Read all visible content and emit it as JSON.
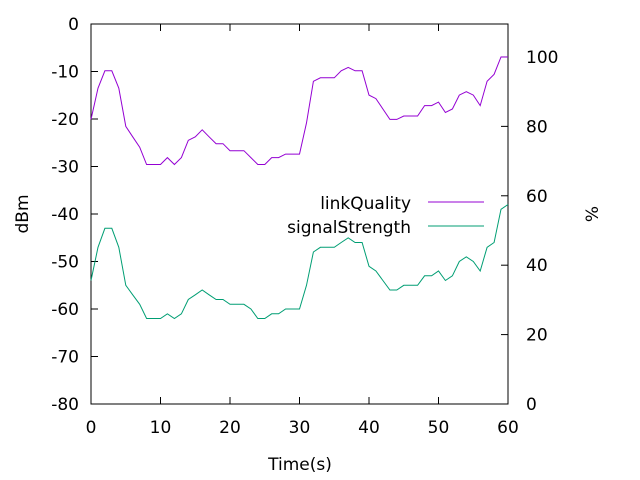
{
  "chart_data": {
    "type": "line",
    "xlabel": "Time(s)",
    "ylabel": "dBm",
    "y2label": "%",
    "xlim": [
      0,
      60
    ],
    "ylim": [
      -80,
      0
    ],
    "y2lim": [
      0,
      109.5
    ],
    "x_ticks": [
      0,
      10,
      20,
      30,
      40,
      50,
      60
    ],
    "y_ticks": [
      0,
      -10,
      -20,
      -30,
      -40,
      -50,
      -60,
      -70,
      -80
    ],
    "y2_ticks": [
      0,
      20,
      40,
      60,
      80,
      100
    ],
    "grid": false,
    "legend_position": "right-center",
    "series": [
      {
        "name": "linkQuality",
        "axis": "y2",
        "color": "#9400d3",
        "x": [
          0,
          1,
          2,
          3,
          4,
          5,
          6,
          7,
          8,
          9,
          10,
          11,
          12,
          13,
          14,
          15,
          16,
          17,
          18,
          19,
          20,
          21,
          22,
          23,
          24,
          25,
          26,
          27,
          28,
          29,
          30,
          31,
          32,
          33,
          34,
          35,
          36,
          37,
          38,
          39,
          40,
          41,
          42,
          43,
          44,
          45,
          46,
          47,
          48,
          49,
          50,
          51,
          52,
          53,
          54,
          55,
          56,
          57,
          58,
          59,
          60
        ],
        "y": [
          82,
          91,
          96,
          96,
          91,
          80,
          77,
          74,
          69,
          69,
          69,
          71,
          69,
          71,
          76,
          77,
          79,
          77,
          75,
          75,
          73,
          73,
          73,
          71,
          69,
          69,
          71,
          71,
          72,
          72,
          72,
          81,
          93,
          94,
          94,
          94,
          96,
          97,
          96,
          96,
          89,
          88,
          85,
          82,
          82,
          83,
          83,
          83,
          86,
          86,
          87,
          84,
          85,
          89,
          90,
          89,
          86,
          93,
          95,
          100,
          100
        ]
      },
      {
        "name": "signalStrength",
        "axis": "y",
        "color": "#009e73",
        "x": [
          0,
          1,
          2,
          3,
          4,
          5,
          6,
          7,
          8,
          9,
          10,
          11,
          12,
          13,
          14,
          15,
          16,
          17,
          18,
          19,
          20,
          21,
          22,
          23,
          24,
          25,
          26,
          27,
          28,
          29,
          30,
          31,
          32,
          33,
          34,
          35,
          36,
          37,
          38,
          39,
          40,
          41,
          42,
          43,
          44,
          45,
          46,
          47,
          48,
          49,
          50,
          51,
          52,
          53,
          54,
          55,
          56,
          57,
          58,
          59,
          60
        ],
        "y": [
          -54,
          -47,
          -43,
          -43,
          -47,
          -55,
          -57,
          -59,
          -62,
          -62,
          -62,
          -61,
          -62,
          -61,
          -58,
          -57,
          -56,
          -57,
          -58,
          -58,
          -59,
          -59,
          -59,
          -60,
          -62,
          -62,
          -61,
          -61,
          -60,
          -60,
          -60,
          -55,
          -48,
          -47,
          -47,
          -47,
          -46,
          -45,
          -46,
          -46,
          -51,
          -52,
          -54,
          -56,
          -56,
          -55,
          -55,
          -55,
          -53,
          -53,
          -52,
          -54,
          -53,
          -50,
          -49,
          -50,
          -52,
          -47,
          -46,
          -39,
          -38
        ]
      }
    ]
  }
}
